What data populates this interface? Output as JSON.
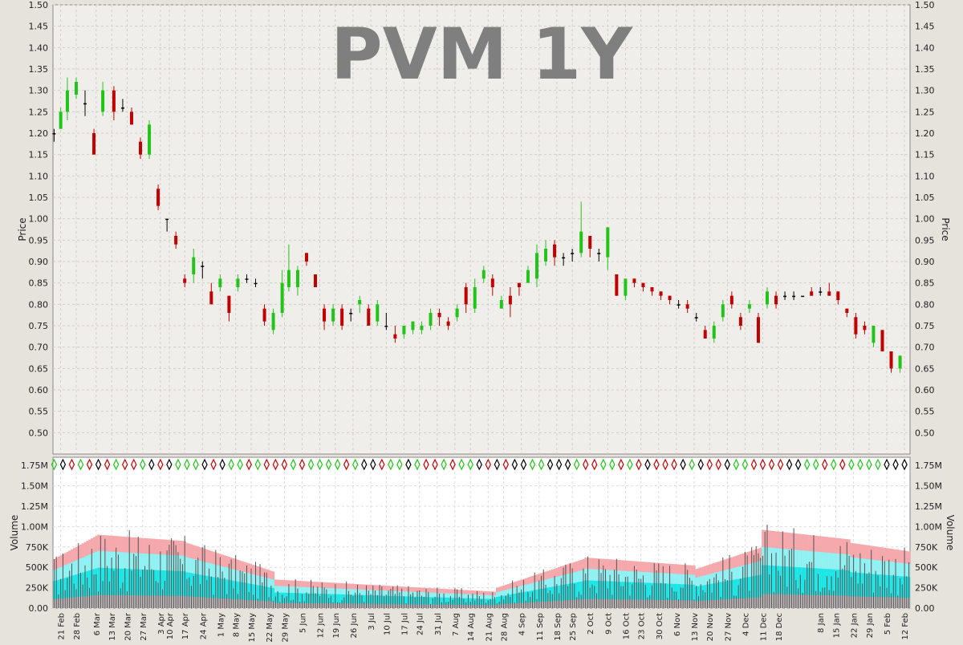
{
  "chart_data": [
    {
      "type": "candlestick",
      "title": "PVM 1Y",
      "ylabel": "Price",
      "ylim": [
        0.45,
        1.5
      ],
      "yticks": [
        "0.50",
        "0.55",
        "0.60",
        "0.65",
        "0.70",
        "0.75",
        "0.80",
        "0.85",
        "0.90",
        "0.95",
        "1.00",
        "1.05",
        "1.10",
        "1.15",
        "1.20",
        "1.25",
        "1.30",
        "1.35",
        "1.40",
        "1.45",
        "1.50"
      ],
      "grid": true,
      "colors": {
        "up": "#22c41a",
        "down": "#c00000",
        "flat": "#000000"
      },
      "sessions": [
        {
          "i": 0,
          "o": 1.2,
          "c": 1.2,
          "h": 1.21,
          "l": 1.18
        },
        {
          "i": 3,
          "o": 1.21,
          "c": 1.25,
          "h": 1.26,
          "l": 1.21
        },
        {
          "i": 6,
          "o": 1.25,
          "c": 1.3,
          "h": 1.33,
          "l": 1.23
        },
        {
          "i": 10,
          "o": 1.29,
          "c": 1.32,
          "h": 1.33,
          "l": 1.28
        },
        {
          "i": 14,
          "o": 1.27,
          "c": 1.27,
          "h": 1.3,
          "l": 1.24
        },
        {
          "i": 18,
          "o": 1.2,
          "c": 1.15,
          "h": 1.21,
          "l": 1.15
        },
        {
          "i": 22,
          "o": 1.25,
          "c": 1.3,
          "h": 1.32,
          "l": 1.24
        },
        {
          "i": 27,
          "o": 1.3,
          "c": 1.25,
          "h": 1.31,
          "l": 1.23
        },
        {
          "i": 31,
          "o": 1.26,
          "c": 1.26,
          "h": 1.28,
          "l": 1.25
        },
        {
          "i": 35,
          "o": 1.25,
          "c": 1.22,
          "h": 1.26,
          "l": 1.22
        },
        {
          "i": 39,
          "o": 1.18,
          "c": 1.15,
          "h": 1.19,
          "l": 1.14
        },
        {
          "i": 43,
          "o": 1.15,
          "c": 1.22,
          "h": 1.23,
          "l": 1.14
        },
        {
          "i": 47,
          "o": 1.07,
          "c": 1.03,
          "h": 1.08,
          "l": 1.02
        },
        {
          "i": 51,
          "o": 1.0,
          "c": 1.0,
          "h": 1.0,
          "l": 0.97
        },
        {
          "i": 55,
          "o": 0.96,
          "c": 0.94,
          "h": 0.97,
          "l": 0.93
        },
        {
          "i": 59,
          "o": 0.86,
          "c": 0.85,
          "h": 0.87,
          "l": 0.84
        },
        {
          "i": 63,
          "o": 0.87,
          "c": 0.91,
          "h": 0.93,
          "l": 0.85
        },
        {
          "i": 67,
          "o": 0.89,
          "c": 0.89,
          "h": 0.9,
          "l": 0.86
        },
        {
          "i": 71,
          "o": 0.83,
          "c": 0.8,
          "h": 0.85,
          "l": 0.8
        },
        {
          "i": 75,
          "o": 0.84,
          "c": 0.86,
          "h": 0.87,
          "l": 0.83
        },
        {
          "i": 79,
          "o": 0.82,
          "c": 0.78,
          "h": 0.82,
          "l": 0.76
        },
        {
          "i": 83,
          "o": 0.84,
          "c": 0.86,
          "h": 0.87,
          "l": 0.83
        },
        {
          "i": 87,
          "o": 0.86,
          "c": 0.86,
          "h": 0.87,
          "l": 0.85
        },
        {
          "i": 91,
          "o": 0.85,
          "c": 0.85,
          "h": 0.86,
          "l": 0.84
        },
        {
          "i": 95,
          "o": 0.79,
          "c": 0.76,
          "h": 0.8,
          "l": 0.75
        },
        {
          "i": 99,
          "o": 0.74,
          "c": 0.78,
          "h": 0.79,
          "l": 0.73
        },
        {
          "i": 103,
          "o": 0.78,
          "c": 0.85,
          "h": 0.88,
          "l": 0.77
        },
        {
          "i": 106,
          "o": 0.84,
          "c": 0.88,
          "h": 0.94,
          "l": 0.83
        },
        {
          "i": 110,
          "o": 0.84,
          "c": 0.88,
          "h": 0.89,
          "l": 0.82
        },
        {
          "i": 114,
          "o": 0.92,
          "c": 0.9,
          "h": 0.92,
          "l": 0.89
        },
        {
          "i": 118,
          "o": 0.87,
          "c": 0.84,
          "h": 0.87,
          "l": 0.84
        },
        {
          "i": 122,
          "o": 0.79,
          "c": 0.76,
          "h": 0.8,
          "l": 0.74
        },
        {
          "i": 126,
          "o": 0.76,
          "c": 0.79,
          "h": 0.8,
          "l": 0.75
        },
        {
          "i": 130,
          "o": 0.79,
          "c": 0.75,
          "h": 0.8,
          "l": 0.74
        },
        {
          "i": 134,
          "o": 0.78,
          "c": 0.78,
          "h": 0.79,
          "l": 0.76
        },
        {
          "i": 138,
          "o": 0.8,
          "c": 0.81,
          "h": 0.82,
          "l": 0.78
        },
        {
          "i": 142,
          "o": 0.79,
          "c": 0.75,
          "h": 0.8,
          "l": 0.75
        },
        {
          "i": 146,
          "o": 0.76,
          "c": 0.8,
          "h": 0.81,
          "l": 0.75
        },
        {
          "i": 150,
          "o": 0.75,
          "c": 0.75,
          "h": 0.78,
          "l": 0.74
        },
        {
          "i": 154,
          "o": 0.73,
          "c": 0.72,
          "h": 0.75,
          "l": 0.71
        },
        {
          "i": 158,
          "o": 0.73,
          "c": 0.75,
          "h": 0.75,
          "l": 0.72
        },
        {
          "i": 162,
          "o": 0.74,
          "c": 0.76,
          "h": 0.76,
          "l": 0.73
        },
        {
          "i": 166,
          "o": 0.74,
          "c": 0.75,
          "h": 0.76,
          "l": 0.73
        },
        {
          "i": 170,
          "o": 0.75,
          "c": 0.78,
          "h": 0.79,
          "l": 0.74
        },
        {
          "i": 174,
          "o": 0.78,
          "c": 0.77,
          "h": 0.79,
          "l": 0.75
        },
        {
          "i": 178,
          "o": 0.76,
          "c": 0.75,
          "h": 0.77,
          "l": 0.74
        },
        {
          "i": 182,
          "o": 0.77,
          "c": 0.79,
          "h": 0.8,
          "l": 0.76
        },
        {
          "i": 186,
          "o": 0.84,
          "c": 0.8,
          "h": 0.85,
          "l": 0.78
        },
        {
          "i": 190,
          "o": 0.79,
          "c": 0.84,
          "h": 0.86,
          "l": 0.78
        },
        {
          "i": 194,
          "o": 0.86,
          "c": 0.88,
          "h": 0.89,
          "l": 0.85
        },
        {
          "i": 198,
          "o": 0.86,
          "c": 0.84,
          "h": 0.87,
          "l": 0.82
        },
        {
          "i": 202,
          "o": 0.79,
          "c": 0.81,
          "h": 0.82,
          "l": 0.79
        },
        {
          "i": 206,
          "o": 0.82,
          "c": 0.8,
          "h": 0.84,
          "l": 0.77
        },
        {
          "i": 210,
          "o": 0.85,
          "c": 0.84,
          "h": 0.85,
          "l": 0.82
        },
        {
          "i": 214,
          "o": 0.85,
          "c": 0.88,
          "h": 0.89,
          "l": 0.85
        },
        {
          "i": 218,
          "o": 0.86,
          "c": 0.92,
          "h": 0.94,
          "l": 0.84
        },
        {
          "i": 222,
          "o": 0.9,
          "c": 0.93,
          "h": 0.95,
          "l": 0.89
        },
        {
          "i": 226,
          "o": 0.94,
          "c": 0.91,
          "h": 0.95,
          "l": 0.89
        },
        {
          "i": 230,
          "o": 0.91,
          "c": 0.91,
          "h": 0.92,
          "l": 0.89
        },
        {
          "i": 234,
          "o": 0.92,
          "c": 0.92,
          "h": 0.93,
          "l": 0.9
        },
        {
          "i": 238,
          "o": 0.92,
          "c": 0.97,
          "h": 1.04,
          "l": 0.91
        },
        {
          "i": 242,
          "o": 0.96,
          "c": 0.93,
          "h": 0.96,
          "l": 0.91
        },
        {
          "i": 246,
          "o": 0.92,
          "c": 0.92,
          "h": 0.93,
          "l": 0.9
        },
        {
          "i": 250,
          "o": 0.91,
          "c": 0.98,
          "h": 0.98,
          "l": 0.88
        },
        {
          "i": 254,
          "o": 0.87,
          "c": 0.82,
          "h": 0.87,
          "l": 0.82
        },
        {
          "i": 258,
          "o": 0.82,
          "c": 0.86,
          "h": 0.86,
          "l": 0.81
        },
        {
          "i": 262,
          "o": 0.86,
          "c": 0.85,
          "h": 0.86,
          "l": 0.84
        },
        {
          "i": 266,
          "o": 0.85,
          "c": 0.84,
          "h": 0.85,
          "l": 0.83
        },
        {
          "i": 270,
          "o": 0.84,
          "c": 0.83,
          "h": 0.84,
          "l": 0.82
        },
        {
          "i": 274,
          "o": 0.83,
          "c": 0.82,
          "h": 0.83,
          "l": 0.81
        },
        {
          "i": 278,
          "o": 0.82,
          "c": 0.81,
          "h": 0.82,
          "l": 0.8
        },
        {
          "i": 282,
          "o": 0.8,
          "c": 0.8,
          "h": 0.81,
          "l": 0.79
        },
        {
          "i": 286,
          "o": 0.8,
          "c": 0.79,
          "h": 0.81,
          "l": 0.78
        },
        {
          "i": 290,
          "o": 0.77,
          "c": 0.77,
          "h": 0.78,
          "l": 0.76
        },
        {
          "i": 294,
          "o": 0.74,
          "c": 0.72,
          "h": 0.75,
          "l": 0.72
        },
        {
          "i": 298,
          "o": 0.72,
          "c": 0.75,
          "h": 0.76,
          "l": 0.71
        },
        {
          "i": 302,
          "o": 0.77,
          "c": 0.8,
          "h": 0.81,
          "l": 0.76
        },
        {
          "i": 306,
          "o": 0.82,
          "c": 0.8,
          "h": 0.83,
          "l": 0.79
        },
        {
          "i": 310,
          "o": 0.77,
          "c": 0.75,
          "h": 0.78,
          "l": 0.74
        },
        {
          "i": 314,
          "o": 0.79,
          "c": 0.8,
          "h": 0.81,
          "l": 0.78
        },
        {
          "i": 318,
          "o": 0.77,
          "c": 0.71,
          "h": 0.78,
          "l": 0.71
        },
        {
          "i": 322,
          "o": 0.8,
          "c": 0.83,
          "h": 0.84,
          "l": 0.79
        },
        {
          "i": 326,
          "o": 0.82,
          "c": 0.8,
          "h": 0.83,
          "l": 0.79
        },
        {
          "i": 330,
          "o": 0.82,
          "c": 0.82,
          "h": 0.83,
          "l": 0.81
        },
        {
          "i": 334,
          "o": 0.82,
          "c": 0.82,
          "h": 0.83,
          "l": 0.81
        },
        {
          "i": 338,
          "o": 0.82,
          "c": 0.82,
          "h": 0.82,
          "l": 0.82
        },
        {
          "i": 342,
          "o": 0.83,
          "c": 0.82,
          "h": 0.84,
          "l": 0.82
        },
        {
          "i": 346,
          "o": 0.83,
          "c": 0.83,
          "h": 0.84,
          "l": 0.82
        },
        {
          "i": 350,
          "o": 0.83,
          "c": 0.82,
          "h": 0.85,
          "l": 0.82
        },
        {
          "i": 354,
          "o": 0.83,
          "c": 0.81,
          "h": 0.83,
          "l": 0.8
        },
        {
          "i": 358,
          "o": 0.79,
          "c": 0.78,
          "h": 0.79,
          "l": 0.77
        },
        {
          "i": 362,
          "o": 0.77,
          "c": 0.73,
          "h": 0.78,
          "l": 0.72
        },
        {
          "i": 366,
          "o": 0.75,
          "c": 0.74,
          "h": 0.76,
          "l": 0.73
        },
        {
          "i": 370,
          "o": 0.71,
          "c": 0.75,
          "h": 0.75,
          "l": 0.7
        },
        {
          "i": 374,
          "o": 0.74,
          "c": 0.69,
          "h": 0.74,
          "l": 0.69
        },
        {
          "i": 378,
          "o": 0.69,
          "c": 0.65,
          "h": 0.69,
          "l": 0.64
        },
        {
          "i": 382,
          "o": 0.65,
          "c": 0.68,
          "h": 0.68,
          "l": 0.64
        }
      ]
    },
    {
      "type": "bar",
      "ylabel": "Volume",
      "ylim": [
        0,
        1850000
      ],
      "yticks": [
        "0.00",
        "250K",
        "500K",
        "750K",
        "1.00M",
        "1.25M",
        "1.50M",
        "1.75M"
      ],
      "xticks": [
        {
          "i": 3,
          "label": "21 Feb"
        },
        {
          "i": 10,
          "label": "28 Feb"
        },
        {
          "i": 19,
          "label": "6 Mar"
        },
        {
          "i": 26,
          "label": "13 Mar"
        },
        {
          "i": 33,
          "label": "20 Mar"
        },
        {
          "i": 40,
          "label": "27 Mar"
        },
        {
          "i": 48,
          "label": "3 Apr"
        },
        {
          "i": 52,
          "label": "10 Apr"
        },
        {
          "i": 59,
          "label": "17 Apr"
        },
        {
          "i": 67,
          "label": "24 Apr"
        },
        {
          "i": 75,
          "label": "1 May"
        },
        {
          "i": 82,
          "label": "8 May"
        },
        {
          "i": 89,
          "label": "15 May"
        },
        {
          "i": 97,
          "label": "22 May"
        },
        {
          "i": 104,
          "label": "29 May"
        },
        {
          "i": 112,
          "label": "5 Jun"
        },
        {
          "i": 120,
          "label": "12 Jun"
        },
        {
          "i": 127,
          "label": "19 Jun"
        },
        {
          "i": 135,
          "label": "26 Jun"
        },
        {
          "i": 143,
          "label": "3 Jul"
        },
        {
          "i": 150,
          "label": "10 Jul"
        },
        {
          "i": 158,
          "label": "17 Jul"
        },
        {
          "i": 165,
          "label": "24 Jul"
        },
        {
          "i": 173,
          "label": "31 Jul"
        },
        {
          "i": 181,
          "label": "7 Aug"
        },
        {
          "i": 188,
          "label": "14 Aug"
        },
        {
          "i": 196,
          "label": "21 Aug"
        },
        {
          "i": 203,
          "label": "28 Aug"
        },
        {
          "i": 211,
          "label": "4 Sep"
        },
        {
          "i": 219,
          "label": "11 Sep"
        },
        {
          "i": 227,
          "label": "18 Sep"
        },
        {
          "i": 234,
          "label": "25 Sep"
        },
        {
          "i": 242,
          "label": "2 Oct"
        },
        {
          "i": 250,
          "label": "9 Oct"
        },
        {
          "i": 258,
          "label": "16 Oct"
        },
        {
          "i": 265,
          "label": "23 Oct"
        },
        {
          "i": 273,
          "label": "30 Oct"
        },
        {
          "i": 281,
          "label": "6 Nov"
        },
        {
          "i": 289,
          "label": "13 Nov"
        },
        {
          "i": 296,
          "label": "20 Nov"
        },
        {
          "i": 304,
          "label": "27 Nov"
        },
        {
          "i": 312,
          "label": "4 Dec"
        },
        {
          "i": 320,
          "label": "11 Dec"
        },
        {
          "i": 327,
          "label": "18 Dec"
        },
        {
          "i": 346,
          "label": "8 Jan"
        },
        {
          "i": 353,
          "label": "15 Jan"
        },
        {
          "i": 361,
          "label": "22 Jan"
        },
        {
          "i": 368,
          "label": "29 Jan"
        },
        {
          "i": 376,
          "label": "5 Feb"
        },
        {
          "i": 384,
          "label": "12 Feb"
        }
      ],
      "count": 387
    }
  ]
}
